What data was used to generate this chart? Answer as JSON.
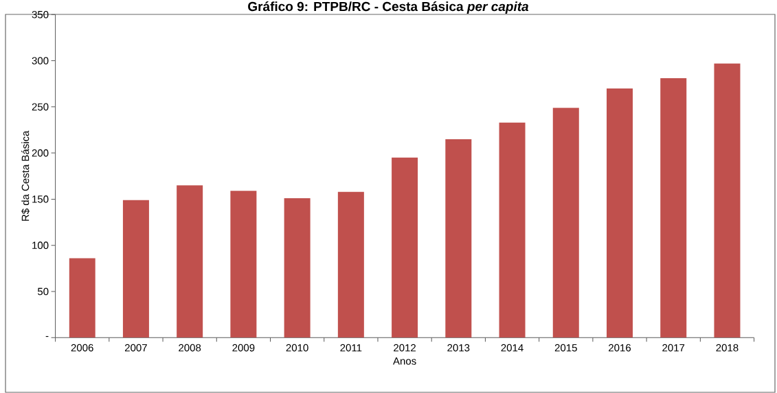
{
  "chart_data": {
    "type": "bar",
    "title": "Gráfico 9: PTPB/RC - Cesta Básica *per capita*",
    "xlabel": "Anos",
    "ylabel": "R$ da Cesta Básica",
    "categories": [
      "2006",
      "2007",
      "2008",
      "2009",
      "2010",
      "2011",
      "2012",
      "2013",
      "2014",
      "2015",
      "2016",
      "2017",
      "2018"
    ],
    "values": [
      86,
      149,
      165,
      159,
      151,
      158,
      195,
      215,
      233,
      249,
      270,
      281,
      297
    ],
    "color": "#c0504d",
    "ylim": [
      0,
      350
    ],
    "yticks": [
      {
        "value": 0,
        "label": "-"
      },
      50,
      100,
      150,
      200,
      250,
      300,
      350
    ],
    "grid": false
  }
}
